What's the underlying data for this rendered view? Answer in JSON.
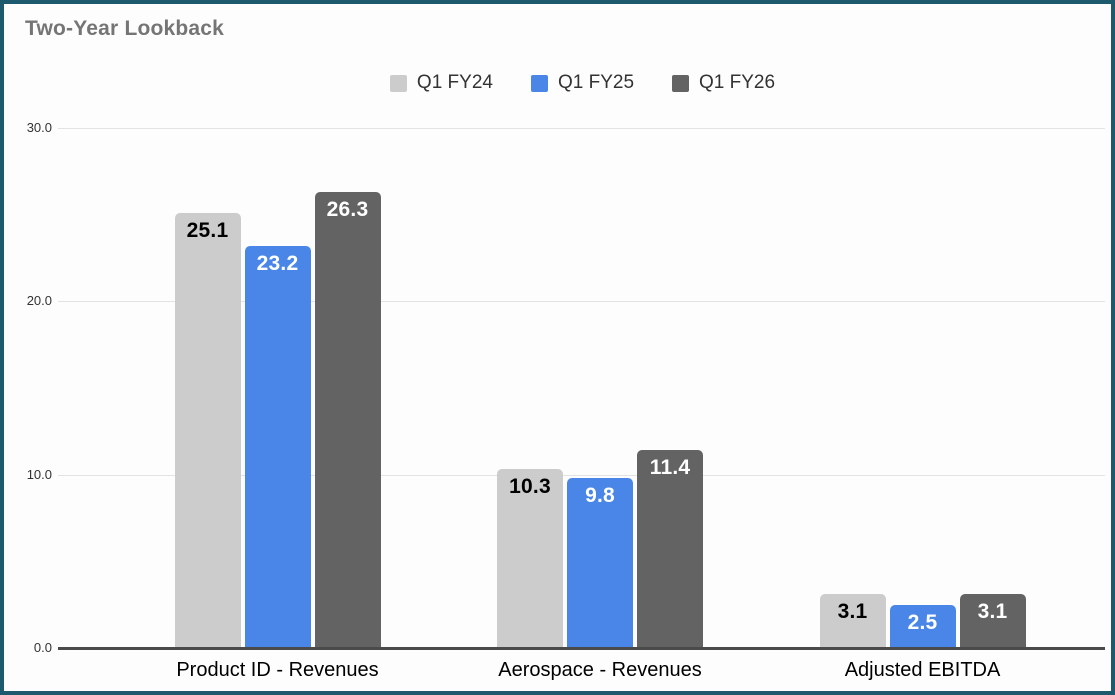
{
  "header": {
    "title": "Two-Year Lookback"
  },
  "chart_data": {
    "type": "bar",
    "title": "Two-Year Lookback",
    "categories": [
      "Product ID - Revenues",
      "Aerospace - Revenues",
      "Adjusted EBITDA"
    ],
    "series": [
      {
        "name": "Q1 FY24",
        "color": "#cccccc",
        "label_color": "#000000",
        "values": [
          25.1,
          10.3,
          3.1
        ]
      },
      {
        "name": "Q1 FY25",
        "color": "#4a86e8",
        "label_color": "#ffffff",
        "values": [
          23.2,
          9.8,
          2.5
        ]
      },
      {
        "name": "Q1 FY26",
        "color": "#636363",
        "label_color": "#ffffff",
        "values": [
          26.3,
          11.4,
          3.1
        ]
      }
    ],
    "value_label_format": "one-decimal",
    "ylim": [
      0,
      30
    ],
    "yticks": [
      0,
      10,
      20,
      30
    ],
    "ytick_labels": [
      "0.0",
      "10.0",
      "20.0",
      "30.0"
    ],
    "grid": true,
    "legend_position": "top",
    "colors": {
      "grid": "#e3e3e3",
      "axis": "#4a4a4a",
      "title": "#757575",
      "tick_label": "#333333",
      "category_label": "#000000",
      "legend_text": "#333333",
      "frame_border": "#1e5a6e",
      "background": "#fdfdfd"
    }
  }
}
